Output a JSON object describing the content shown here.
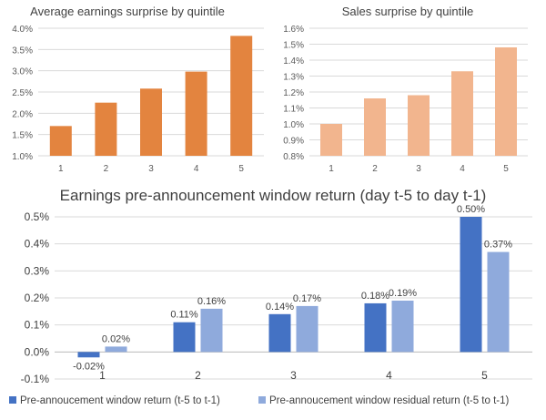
{
  "chart_data": [
    {
      "type": "bar",
      "title": "Average earnings surprise by quintile",
      "categories": [
        "1",
        "2",
        "3",
        "4",
        "5"
      ],
      "series": [
        {
          "values": [
            1.7,
            2.25,
            2.58,
            2.98,
            3.82
          ]
        }
      ],
      "ylim": [
        1.0,
        4.0
      ],
      "yticks": [
        "1.0%",
        "1.5%",
        "2.0%",
        "2.5%",
        "3.0%",
        "3.5%",
        "4.0%"
      ],
      "grid": true,
      "colors": {
        "bar": "#E3843F",
        "grid": "#D9D9D9",
        "text": "#595959",
        "title": "#404040"
      }
    },
    {
      "type": "bar",
      "title": "Sales surprise by quintile",
      "categories": [
        "1",
        "2",
        "3",
        "4",
        "5"
      ],
      "series": [
        {
          "values": [
            1.0,
            1.16,
            1.18,
            1.33,
            1.48
          ]
        }
      ],
      "ylim": [
        0.8,
        1.6
      ],
      "yticks": [
        "0.8%",
        "0.9%",
        "1.0%",
        "1.1%",
        "1.2%",
        "1.3%",
        "1.4%",
        "1.5%",
        "1.6%"
      ],
      "grid": true,
      "colors": {
        "bar": "#F2B58E",
        "grid": "#D9D9D9",
        "text": "#595959",
        "title": "#404040"
      }
    },
    {
      "type": "bar",
      "title": "Earnings pre-announcement window return (day t-5 to day t-1)",
      "categories": [
        "1",
        "2",
        "3",
        "4",
        "5"
      ],
      "series": [
        {
          "name": "Pre-annoucement window return (t-5 to t-1)",
          "values": [
            -0.02,
            0.11,
            0.14,
            0.18,
            0.5
          ],
          "labels": [
            "-0.02%",
            "0.11%",
            "0.14%",
            "0.18%",
            "0.50%"
          ]
        },
        {
          "name": "Pre-annoucement window residual return (t-5 to t-1)",
          "values": [
            0.02,
            0.16,
            0.17,
            0.19,
            0.37
          ],
          "labels": [
            "0.02%",
            "0.16%",
            "0.17%",
            "0.19%",
            "0.37%"
          ]
        }
      ],
      "ylim": [
        -0.1,
        0.5
      ],
      "yticks": [
        "-0.1%",
        "0.0%",
        "0.1%",
        "0.2%",
        "0.3%",
        "0.4%",
        "0.5%"
      ],
      "grid": true,
      "legend": "bottom",
      "colors": {
        "series": [
          "#4472C4",
          "#8FAADC"
        ],
        "grid": "#D9D9D9",
        "text": "#404040",
        "title": "#404040"
      }
    }
  ]
}
